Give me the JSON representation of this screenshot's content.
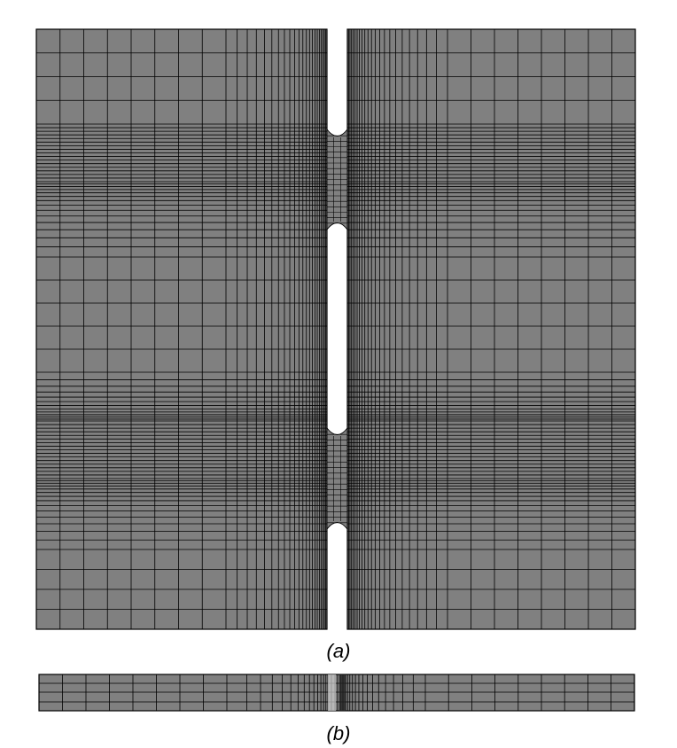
{
  "figure": {
    "caption_a": "(a)",
    "caption_b": "(b)",
    "colors": {
      "mesh_fill": "#808080",
      "mesh_line": "#000000",
      "background": "#ffffff"
    }
  }
}
